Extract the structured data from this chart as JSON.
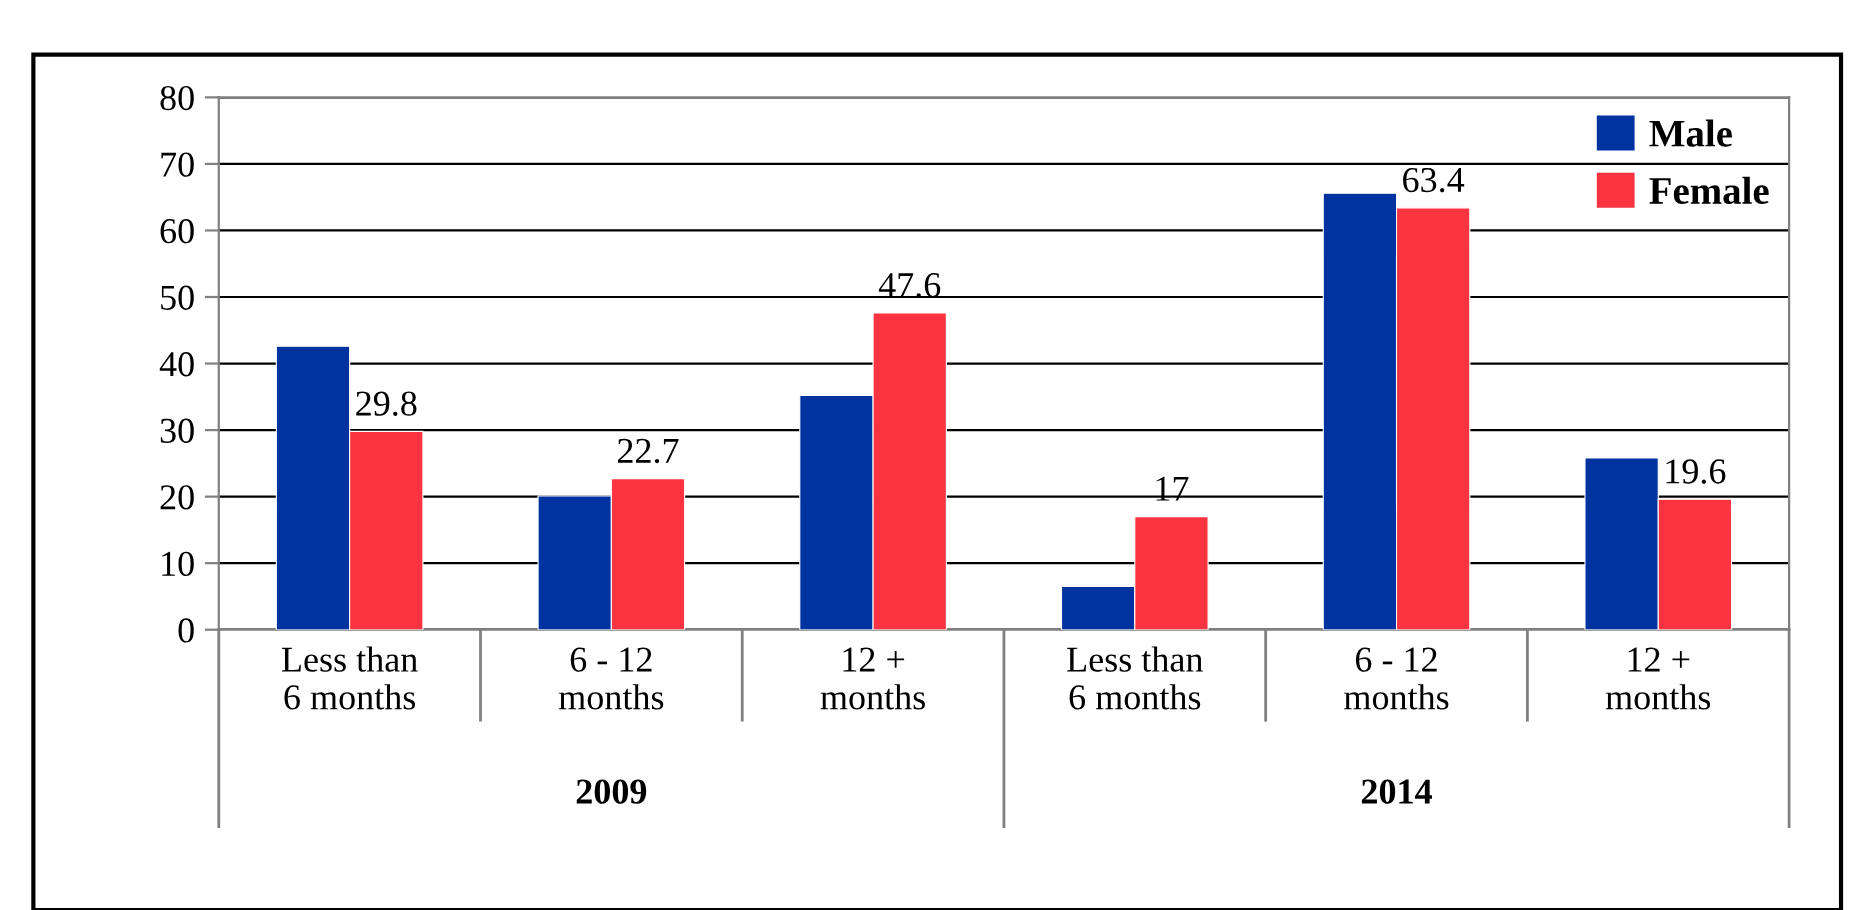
{
  "chart_data": {
    "type": "bar",
    "categories": [
      "Less than\n6 months",
      "6 - 12\nmonths",
      "12 +\nmonths",
      "Less than\n6 months",
      "6 - 12\nmonths",
      "12 +\nmonths"
    ],
    "series": [
      {
        "name": "Male",
        "color": "#0033a0",
        "values": [
          42.6,
          20.1,
          35.2,
          6.5,
          65.6,
          25.8
        ]
      },
      {
        "name": "Female",
        "color": "#fc3441",
        "values": [
          29.8,
          22.7,
          47.6,
          17,
          63.4,
          19.6
        ],
        "value_labels": [
          "29.8",
          "22.7",
          "47.6",
          "17",
          "63.4",
          "19.6"
        ]
      }
    ],
    "annotations": [
      "2009",
      "2014"
    ],
    "ylim": [
      0,
      80
    ],
    "yticks": [
      0,
      10,
      20,
      30,
      40,
      50,
      60,
      70,
      80
    ],
    "grid": "y",
    "legend": "top right"
  }
}
